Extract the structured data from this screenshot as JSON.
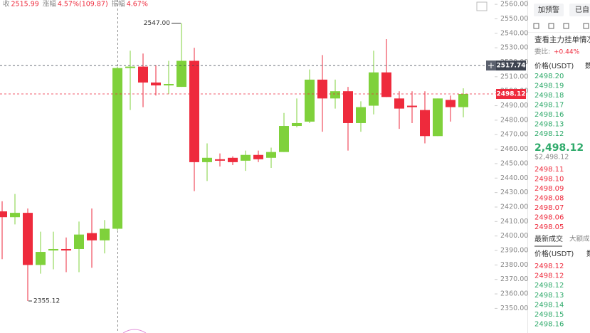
{
  "header": {
    "items": [
      {
        "label": "收",
        "value": "2515.99"
      },
      {
        "label": "涨幅",
        "value": "4.57%(109.87)"
      },
      {
        "label": "振幅",
        "value": "4.67%"
      }
    ]
  },
  "chart_data": {
    "type": "candlestick",
    "up_color": "#7fd13b",
    "down_color": "#ee2a3c",
    "grid": false,
    "ylim": [
      2333,
      2563
    ],
    "yticks": [
      {
        "value": 2350,
        "label": "2350.00"
      },
      {
        "value": 2360,
        "label": "2360.00"
      },
      {
        "value": 2370,
        "label": "2370.00"
      },
      {
        "value": 2380,
        "label": "2380.00"
      },
      {
        "value": 2390,
        "label": "2390.00"
      },
      {
        "value": 2400,
        "label": "2400.00"
      },
      {
        "value": 2410,
        "label": "2410.00"
      },
      {
        "value": 2420,
        "label": "2420.00"
      },
      {
        "value": 2430,
        "label": "2430.00"
      },
      {
        "value": 2440,
        "label": "2440.00"
      },
      {
        "value": 2450,
        "label": "2450.00"
      },
      {
        "value": 2460,
        "label": "2460.00"
      },
      {
        "value": 2470,
        "label": "2470.00"
      },
      {
        "value": 2480,
        "label": "2480.00"
      },
      {
        "value": 2490,
        "label": "2490.00"
      },
      {
        "value": 2500,
        "label": "2500.00"
      },
      {
        "value": 2510,
        "label": "2510.00"
      },
      {
        "value": 2520,
        "label": "2520.00"
      },
      {
        "value": 2530,
        "label": "2530.00"
      },
      {
        "value": 2540,
        "label": "2540.00"
      },
      {
        "value": 2550,
        "label": "2550.00"
      },
      {
        "value": 2560,
        "label": "2560.00"
      }
    ],
    "open": [
      2417,
      2413,
      2416,
      2380,
      2390,
      2391,
      2391,
      2402,
      2397,
      2405,
      2516,
      2517,
      2506,
      2504,
      2503,
      2521,
      2451,
      2453,
      2454,
      2452,
      2456,
      2454,
      2458,
      2476,
      2479,
      2508,
      2495,
      2500,
      2478,
      2490,
      2513,
      2495,
      2490,
      2487,
      2469,
      2494,
      2489
    ],
    "high": [
      2424,
      2429,
      2419,
      2403,
      2403,
      2399,
      2410,
      2419,
      2411,
      2517,
      2528,
      2526,
      2518,
      2521,
      2547,
      2530,
      2464,
      2457,
      2455,
      2459,
      2459,
      2461,
      2485,
      2495,
      2515,
      2525,
      2508,
      2503,
      2493,
      2528,
      2536,
      2500,
      2500,
      2500,
      2495,
      2497,
      2502
    ],
    "low": [
      2384,
      2408,
      2355.12,
      2374,
      2377,
      2375,
      2375,
      2378,
      2388,
      2404,
      2487,
      2489,
      2497,
      2498,
      2503,
      2431,
      2438,
      2448,
      2449,
      2445,
      2451,
      2447,
      2458,
      2475,
      2478,
      2472,
      2488,
      2459,
      2472,
      2484,
      2496,
      2474,
      2478,
      2464,
      2469,
      2479,
      2482
    ],
    "close": [
      2413,
      2416,
      2380,
      2389,
      2391,
      2390,
      2401,
      2397,
      2405,
      2516,
      2517,
      2506,
      2504,
      2505,
      2521,
      2451,
      2454,
      2452,
      2451,
      2456,
      2453,
      2458,
      2476,
      2478,
      2508,
      2495,
      2500,
      2478,
      2489,
      2513,
      2496,
      2488,
      2489,
      2469,
      2495,
      2489,
      2498.12
    ],
    "annotations": [
      {
        "value": 2547,
        "label": "2547.00",
        "side": "left"
      },
      {
        "value": 2355.12,
        "label": "2355.12",
        "side": "right"
      }
    ],
    "price_lines": [
      {
        "value": 2517.74,
        "label": "2517.74",
        "color": "#3d4350"
      },
      {
        "value": 2498.12,
        "label": "2498.12",
        "color": "#ee2a3c"
      }
    ]
  },
  "panel": {
    "buttons": [
      "加预警",
      "已自"
    ],
    "link": "查看主力挂单情况",
    "ratio_label": "委比:",
    "ratio_value": "+0.44%"
  },
  "order_book": {
    "headers": [
      "价格(USDT)",
      "数"
    ],
    "asks": [
      "2498.20",
      "2498.19",
      "2498.18",
      "2498.17",
      "2498.16",
      "2498.13",
      "2498.12"
    ],
    "last_price": "2,498.12",
    "last_price_usd": "$2,498.12",
    "bids": [
      "2498.11",
      "2498.10",
      "2498.09",
      "2498.08",
      "2498.07",
      "2498.06",
      "2498.05"
    ]
  },
  "trades": {
    "tabs": [
      "最新成交",
      "大额成"
    ],
    "headers": [
      "价格(USDT)",
      "数"
    ],
    "rows": [
      {
        "price": "2498.12",
        "color": "#ee2a3c"
      },
      {
        "price": "2498.12",
        "color": "#ee2a3c"
      },
      {
        "price": "2498.12",
        "color": "#2eaa6a"
      },
      {
        "price": "2498.13",
        "color": "#2eaa6a"
      },
      {
        "price": "2498.14",
        "color": "#2eaa6a"
      },
      {
        "price": "2498.15",
        "color": "#2eaa6a"
      },
      {
        "price": "2498.16",
        "color": "#2eaa6a"
      }
    ]
  }
}
